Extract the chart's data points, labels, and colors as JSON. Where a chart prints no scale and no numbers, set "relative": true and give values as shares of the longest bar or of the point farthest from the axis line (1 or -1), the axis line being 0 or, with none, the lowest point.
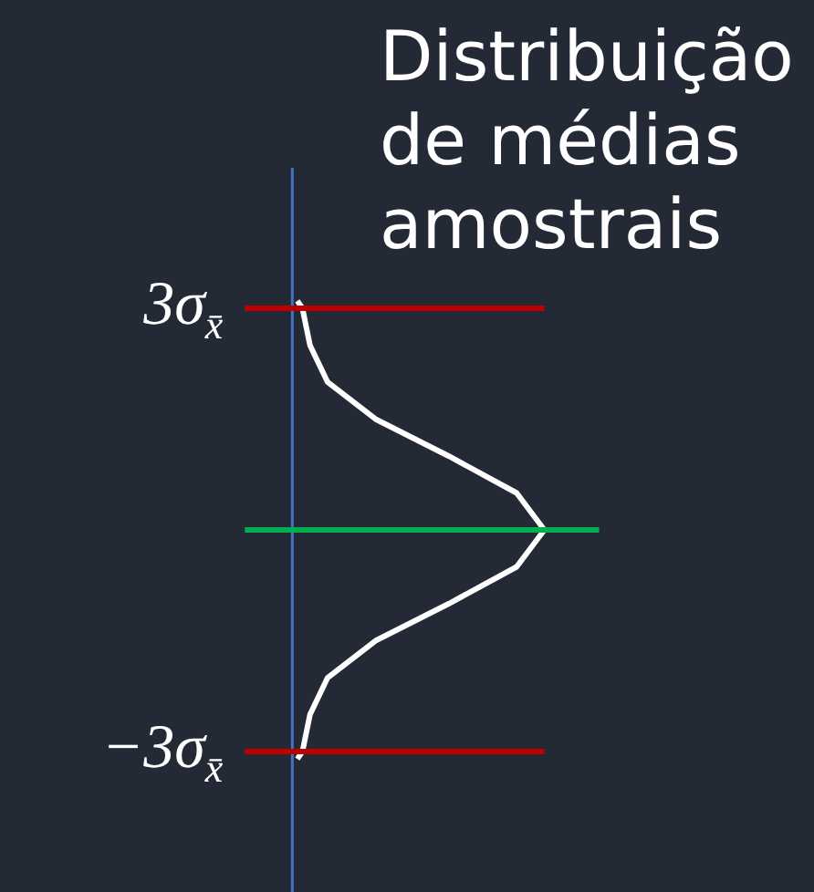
{
  "chart_data": {
    "type": "line",
    "title": "Distribuição de médias amostrais",
    "relative": true,
    "orientation": "horizontal",
    "series": [
      {
        "color": "#ffffff",
        "x": [
          3.1,
          3,
          2.5,
          2,
          1.5,
          1,
          0.5,
          0,
          -0.5,
          -1,
          -1.5,
          -2,
          -2.5,
          -3,
          -3.1
        ],
        "values": [
          0.02,
          0.04,
          0.07,
          0.14,
          0.33,
          0.62,
          0.89,
          1,
          0.89,
          0.62,
          0.33,
          0.14,
          0.07,
          0.04,
          0.02
        ]
      }
    ],
    "ylim": [
      -4.9,
      4.9
    ],
    "yticks": [
      {
        "value": 3,
        "label": "3σ$_{x̄}$"
      },
      {
        "value": -3,
        "label": "−3σ$_{x̄}$"
      }
    ],
    "ref_lines": [
      {
        "axis": "y",
        "value": 3,
        "color": "#c00000"
      },
      {
        "axis": "y",
        "value": 0,
        "color": "#00b050"
      },
      {
        "axis": "y",
        "value": -3,
        "color": "#c00000"
      }
    ],
    "legend": false,
    "marker": "none",
    "line_style": "solid"
  }
}
